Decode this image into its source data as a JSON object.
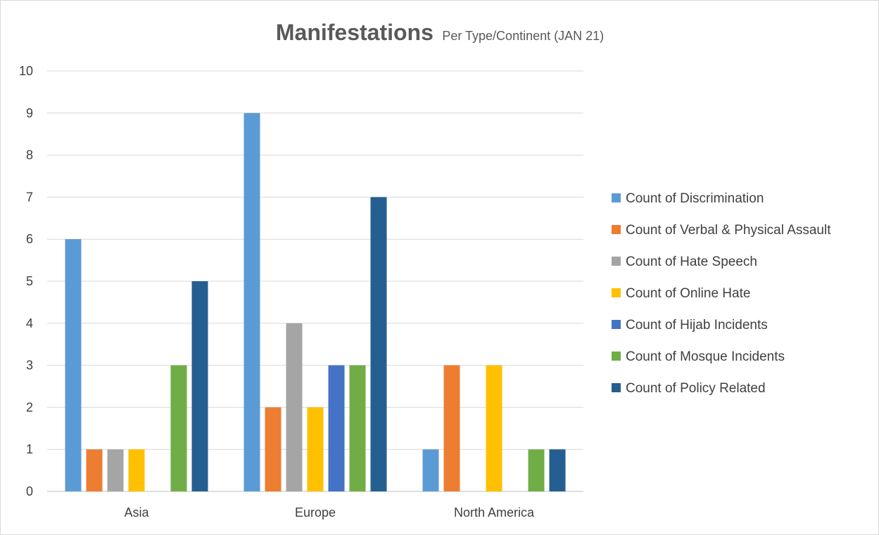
{
  "chart_data": {
    "type": "bar",
    "title": "Manifestations",
    "subtitle": "Per Type/Continent (JAN 21)",
    "xlabel": "",
    "ylabel": "",
    "ylim": [
      0,
      10
    ],
    "yticks": [
      "0",
      "1",
      "2",
      "3",
      "4",
      "5",
      "6",
      "7",
      "8",
      "9",
      "10"
    ],
    "grid": true,
    "legend_position": "right",
    "categories": [
      "Asia",
      "Europe",
      "North America"
    ],
    "series": [
      {
        "name": "Count of Discrimination",
        "color": "#5b9bd5",
        "values": [
          6,
          9,
          1
        ]
      },
      {
        "name": "Count of Verbal & Physical Assault",
        "color": "#ed7d31",
        "values": [
          1,
          2,
          3
        ]
      },
      {
        "name": "Count of Hate Speech",
        "color": "#a5a5a5",
        "values": [
          1,
          4,
          null
        ]
      },
      {
        "name": "Count of Online Hate",
        "color": "#ffc000",
        "values": [
          1,
          2,
          3
        ]
      },
      {
        "name": "Count of Hijab Incidents",
        "color": "#4472c4",
        "values": [
          null,
          3,
          null
        ]
      },
      {
        "name": "Count of Mosque Incidents",
        "color": "#70ad47",
        "values": [
          3,
          3,
          1
        ]
      },
      {
        "name": "Count of Policy Related",
        "color": "#255e91",
        "values": [
          5,
          7,
          1
        ]
      }
    ]
  }
}
